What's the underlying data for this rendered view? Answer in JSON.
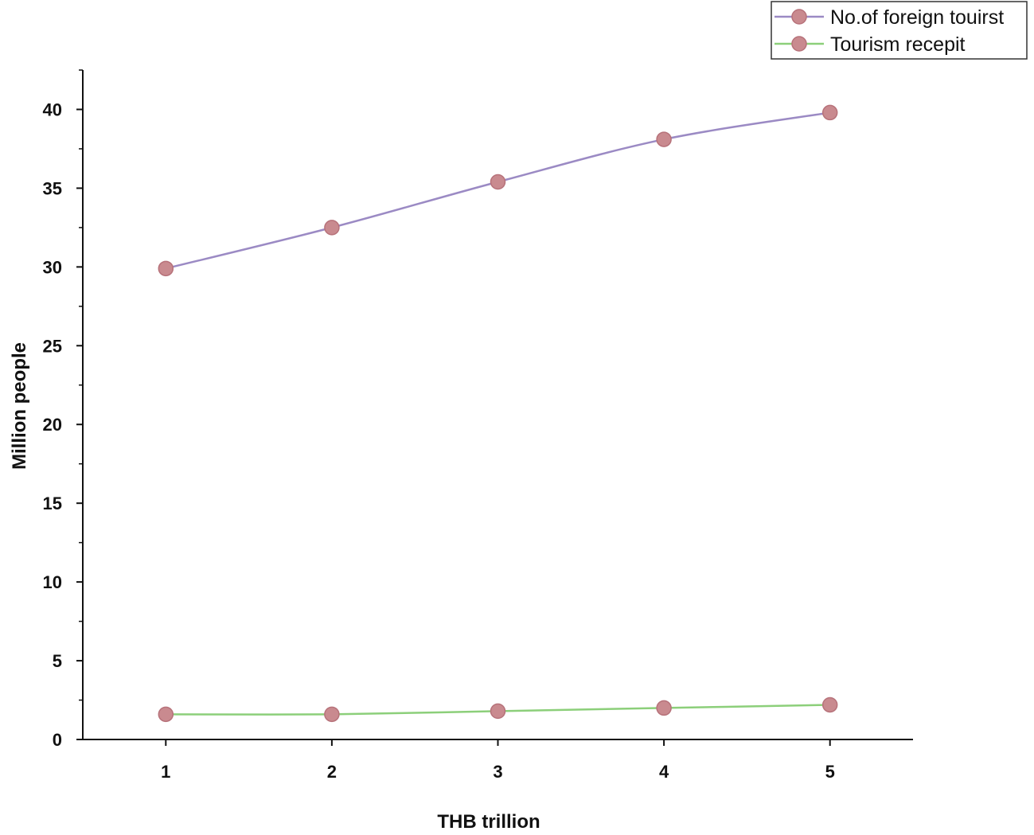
{
  "chart_data": {
    "type": "line",
    "title": "",
    "xlabel": "THB trillion",
    "ylabel": "Million people",
    "x": [
      1,
      2,
      3,
      4,
      5
    ],
    "x_ticks": [
      1,
      2,
      3,
      4,
      5
    ],
    "xlim": [
      0.5,
      5.5
    ],
    "y_ticks": [
      0,
      5,
      10,
      15,
      20,
      25,
      30,
      35,
      40
    ],
    "ylim": [
      0,
      42.5
    ],
    "grid": false,
    "legend_position": "top-right",
    "series": [
      {
        "name": "No.of foreign touirst",
        "values": [
          29.9,
          32.5,
          35.4,
          38.1,
          39.8
        ],
        "line_color": "#9b8ac4",
        "marker_color": "#c98a8f"
      },
      {
        "name": "Tourism recepit",
        "values": [
          1.6,
          1.6,
          1.8,
          2.0,
          2.2
        ],
        "line_color": "#8ccf7a",
        "marker_color": "#c98a8f"
      }
    ]
  }
}
